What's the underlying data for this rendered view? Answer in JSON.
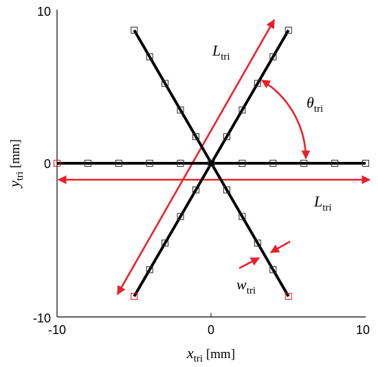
{
  "figure": {
    "xlim": [
      -10,
      10
    ],
    "ylim": [
      -10,
      10
    ],
    "x_ticks": [
      "-10",
      "0",
      "10"
    ],
    "y_ticks": [
      "-10",
      "0",
      "10"
    ],
    "x_axis_label": {
      "symbol": "x",
      "subscript": "tri",
      "unit": " [mm]"
    },
    "y_axis_label": {
      "symbol": "y",
      "subscript": "tri",
      "unit": " [mm]"
    },
    "annotations": {
      "length_diagonal": {
        "symbol": "L",
        "subscript": "tri"
      },
      "length_horizontal": {
        "symbol": "L",
        "subscript": "tri"
      },
      "angle": {
        "symbol": "θ",
        "subscript": "tri"
      },
      "width": {
        "symbol": "w",
        "subscript": "tri"
      }
    },
    "legs": [
      {
        "from": [
          -5,
          8.66
        ],
        "to": [
          5,
          -8.66
        ]
      },
      {
        "from": [
          -5,
          -8.66
        ],
        "to": [
          5,
          8.66
        ]
      },
      {
        "from": [
          -10,
          0
        ],
        "to": [
          10,
          0
        ]
      }
    ],
    "marker_step": 2,
    "colors": {
      "leg": "#000000",
      "marker": "#333333",
      "end_marker": "#e8202a",
      "annotation_arrow": "#e8202a",
      "frame": "#000000"
    }
  }
}
